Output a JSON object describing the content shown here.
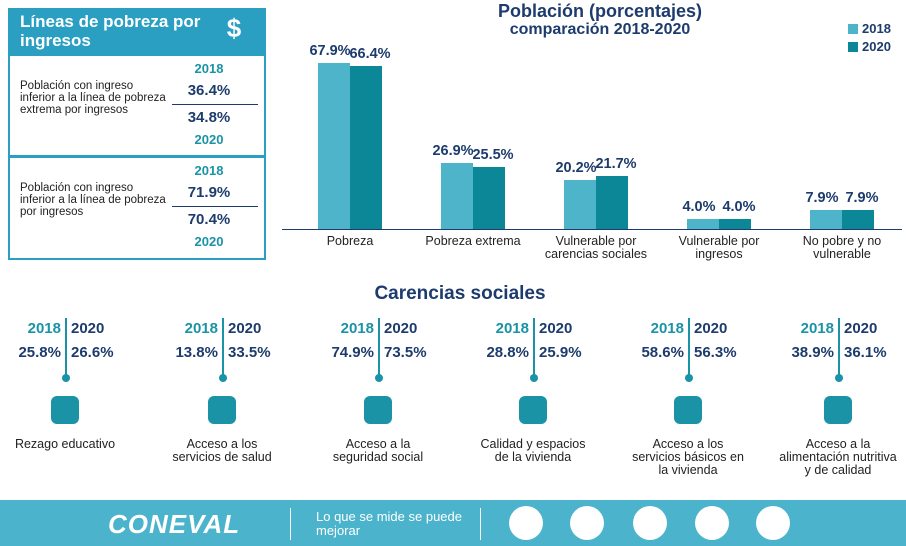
{
  "panel": {
    "title": "Líneas de pobreza por ingresos",
    "icon": "$",
    "blocks": [
      {
        "label": "Población con ingreso inferior a la línea de pobreza extrema por ingresos",
        "years": [
          "2018",
          "2020"
        ],
        "values": [
          "36.4%",
          "34.8%"
        ]
      },
      {
        "label": "Población con ingreso inferior a la línea de pobreza por ingresos",
        "years": [
          "2018",
          "2020"
        ],
        "values": [
          "71.9%",
          "70.4%"
        ]
      }
    ]
  },
  "chart_data": {
    "type": "bar",
    "title": "Población (porcentajes)",
    "subtitle": "comparación 2018-2020",
    "categories": [
      "Pobreza",
      "Pobreza extrema",
      "Vulnerable por carencias sociales",
      "Vulnerable por ingresos",
      "No pobre y no vulnerable"
    ],
    "series": [
      {
        "name": "2018",
        "color": "#4db4c9",
        "values": [
          67.9,
          26.9,
          20.2,
          4.0,
          7.9
        ],
        "value_labels": [
          "67.9%",
          "26.9%",
          "20.2%",
          "4.0%",
          "7.9%"
        ]
      },
      {
        "name": "2020",
        "color": "#0b8797",
        "values": [
          66.4,
          25.5,
          21.7,
          4.0,
          7.9
        ],
        "value_labels": [
          "66.4%",
          "25.5%",
          "21.7%",
          "4.0%",
          "7.9%"
        ]
      }
    ],
    "legend": "top-right"
  },
  "carencias": {
    "title": "Carencias sociales",
    "years": [
      "2018",
      "2020"
    ],
    "items": [
      {
        "values": [
          "25.8%",
          "26.6%"
        ],
        "label": "Rezago educativo"
      },
      {
        "values": [
          "13.8%",
          "33.5%"
        ],
        "label": "Acceso a los servicios de salud"
      },
      {
        "values": [
          "74.9%",
          "73.5%"
        ],
        "label": "Acceso a la seguridad social"
      },
      {
        "values": [
          "28.8%",
          "25.9%"
        ],
        "label": "Calidad y espacios de la vivienda"
      },
      {
        "values": [
          "58.6%",
          "56.3%"
        ],
        "label": "Acceso a los servicios básicos en la vivienda"
      },
      {
        "values": [
          "38.9%",
          "36.1%"
        ],
        "label": "Acceso a la alimentación nutritiva y de calidad"
      }
    ]
  },
  "footer": {
    "logo": "CONEVAL",
    "slogan": "Lo que se mide se puede mejorar"
  }
}
